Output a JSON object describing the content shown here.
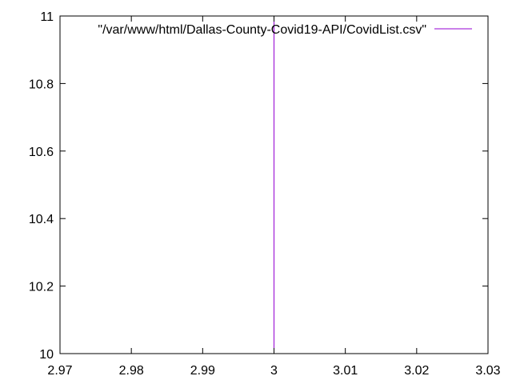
{
  "chart_data": {
    "type": "line",
    "title": "",
    "xlabel": "",
    "ylabel": "",
    "xlim": [
      2.97,
      3.03
    ],
    "ylim": [
      10,
      11
    ],
    "grid": false,
    "legend_position": "top-right",
    "x_ticks": [
      {
        "value": 2.97,
        "label": "2.97"
      },
      {
        "value": 2.98,
        "label": "2.98"
      },
      {
        "value": 2.99,
        "label": "2.99"
      },
      {
        "value": 3.0,
        "label": "3"
      },
      {
        "value": 3.01,
        "label": "3.01"
      },
      {
        "value": 3.02,
        "label": "3.02"
      },
      {
        "value": 3.03,
        "label": "3.03"
      }
    ],
    "y_ticks": [
      {
        "value": 10.0,
        "label": "10"
      },
      {
        "value": 10.2,
        "label": "10.2"
      },
      {
        "value": 10.4,
        "label": "10.4"
      },
      {
        "value": 10.6,
        "label": "10.6"
      },
      {
        "value": 10.8,
        "label": "10.8"
      },
      {
        "value": 11.0,
        "label": "11"
      }
    ],
    "series": [
      {
        "name": "\"/var/www/html/Dallas-County-Covid19-API/CovidList.csv\"",
        "color": "#9400d3",
        "points": [
          {
            "x": 3.0,
            "y": 10.0
          },
          {
            "x": 3.0,
            "y": 11.0
          }
        ]
      }
    ]
  }
}
